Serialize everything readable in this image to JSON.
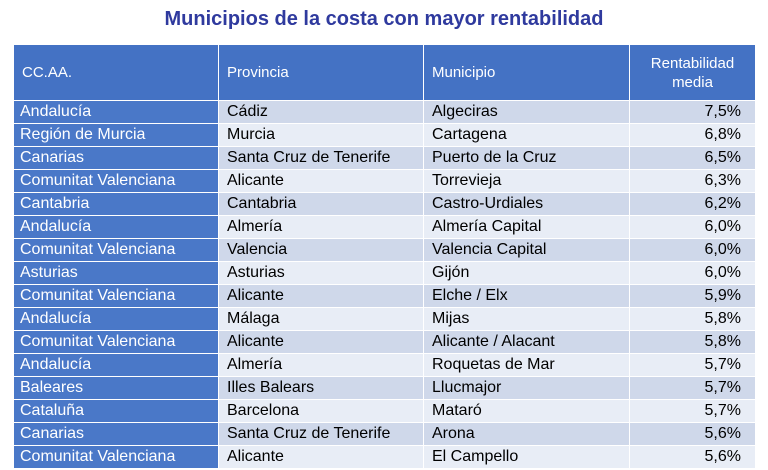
{
  "title": "Municipios de la costa con mayor rentabilidad",
  "headers": [
    "CC.AA.",
    "Provincia",
    "Municipio",
    "Rentabilidad media"
  ],
  "rows": [
    [
      "Andalucía",
      "Cádiz",
      "Algeciras",
      "7,5%"
    ],
    [
      "Región de Murcia",
      "Murcia",
      "Cartagena",
      "6,8%"
    ],
    [
      "Canarias",
      "Santa Cruz de Tenerife",
      "Puerto de la Cruz",
      "6,5%"
    ],
    [
      "Comunitat Valenciana",
      "Alicante",
      "Torrevieja",
      "6,3%"
    ],
    [
      "Cantabria",
      "Cantabria",
      "Castro-Urdiales",
      "6,2%"
    ],
    [
      "Andalucía",
      "Almería",
      "Almería Capital",
      "6,0%"
    ],
    [
      "Comunitat Valenciana",
      "Valencia",
      "Valencia Capital",
      "6,0%"
    ],
    [
      "Asturias",
      "Asturias",
      "Gijón",
      "6,0%"
    ],
    [
      "Comunitat Valenciana",
      "Alicante",
      "Elche / Elx",
      "5,9%"
    ],
    [
      "Andalucía",
      "Málaga",
      "Mijas",
      "5,8%"
    ],
    [
      "Comunitat Valenciana",
      "Alicante",
      "Alicante / Alacant",
      "5,8%"
    ],
    [
      "Andalucía",
      "Almería",
      "Roquetas de Mar",
      "5,7%"
    ],
    [
      "Baleares",
      "Illes Balears",
      "Llucmajor",
      "5,7%"
    ],
    [
      "Cataluña",
      "Barcelona",
      "Mataró",
      "5,7%"
    ],
    [
      "Canarias",
      "Santa Cruz de Tenerife",
      "Arona",
      "5,6%"
    ],
    [
      "Comunitat Valenciana",
      "Alicante",
      "El Campello",
      "5,6%"
    ]
  ],
  "colors": {
    "title": "#2f3a9e",
    "header": "#4472c4",
    "first_column": "#4a78c8",
    "row_band_a": "#cfd8ea",
    "row_band_b": "#e8edf6"
  }
}
